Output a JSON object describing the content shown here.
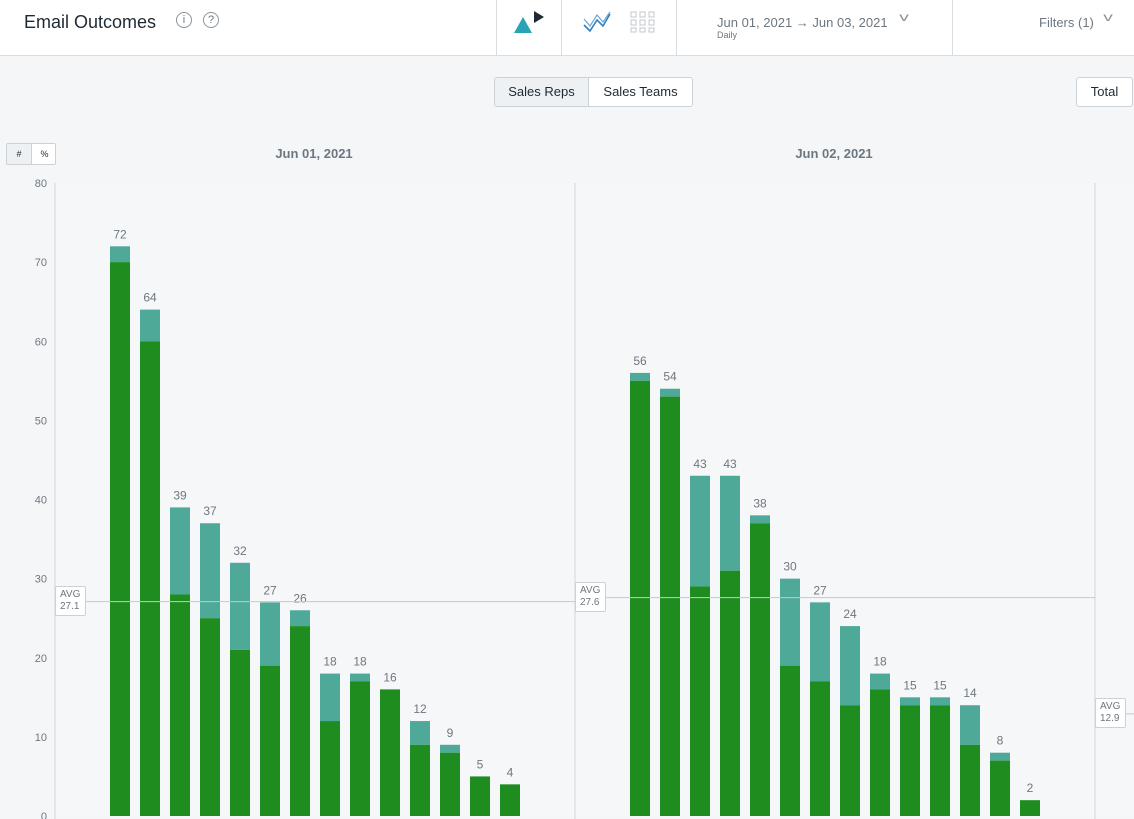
{
  "header": {
    "title": "Email Outcomes",
    "info_icon": "info-icon",
    "help_icon": "help-icon",
    "date_range": "Jun 01, 2021 → Jun 03, 2021",
    "granularity": "Daily",
    "filters_label": "Filters (1)"
  },
  "toolbar": {
    "sales_reps_label": "Sales Reps",
    "sales_teams_label": "Sales Teams",
    "total_label": "Total",
    "count_toggle": "#",
    "percent_toggle": "%"
  },
  "colors": {
    "primary": "#1f8c20",
    "secondary": "#4fa999",
    "accent": "#2aa4b5"
  },
  "chart_data": {
    "type": "bar",
    "stacked": true,
    "ylim": [
      0,
      80
    ],
    "yticks": [
      0,
      10,
      20,
      30,
      40,
      50,
      60,
      70,
      80
    ],
    "grid": false,
    "panels": [
      {
        "title": "Jun 01, 2021",
        "avg_label": "AVG",
        "avg_value": "27.1",
        "avg": 27.1,
        "totals": [
          72,
          64,
          39,
          37,
          32,
          27,
          26,
          18,
          18,
          16,
          12,
          9,
          5,
          4
        ],
        "base": [
          70,
          60,
          28,
          25,
          21,
          19,
          24,
          12,
          17,
          16,
          9,
          8,
          5,
          4
        ]
      },
      {
        "title": "Jun 02, 2021",
        "avg_label": "AVG",
        "avg_value": "27.6",
        "avg": 27.6,
        "totals": [
          56,
          54,
          43,
          43,
          38,
          30,
          27,
          24,
          18,
          15,
          15,
          14,
          8,
          2
        ],
        "base": [
          55,
          53,
          29,
          31,
          37,
          19,
          17,
          14,
          16,
          14,
          14,
          9,
          7,
          2
        ]
      },
      {
        "title": "",
        "avg_label": "AVG",
        "avg_value": "12.9",
        "avg": 12.9,
        "totals": [],
        "base": []
      }
    ]
  }
}
